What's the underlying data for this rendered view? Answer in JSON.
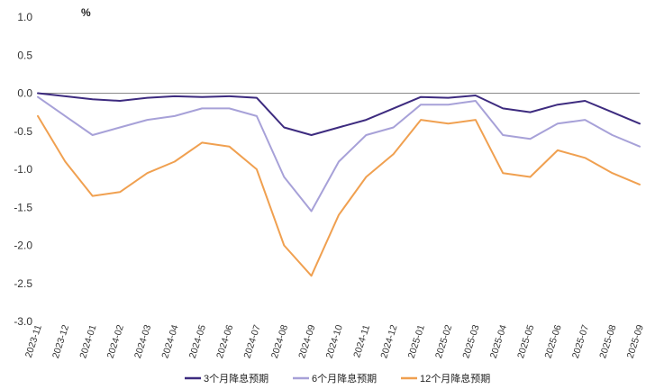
{
  "chart_data": {
    "type": "line",
    "unit_label": "%",
    "ylim": [
      -3.0,
      1.0
    ],
    "yticks": [
      "1.0",
      "0.5",
      "0.0",
      "-0.5",
      "-1.0",
      "-1.5",
      "-2.0",
      "-2.5",
      "-3.0"
    ],
    "ytick_values": [
      1.0,
      0.5,
      0.0,
      -0.5,
      -1.0,
      -1.5,
      -2.0,
      -2.5,
      -3.0
    ],
    "x": [
      "2023-11",
      "2023-12",
      "2024-01",
      "2024-02",
      "2024-03",
      "2024-04",
      "2024-05",
      "2024-06",
      "2024-07",
      "2024-08",
      "2024-09",
      "2024-10",
      "2024-11",
      "2024-12",
      "2025-01",
      "2025-02",
      "2025-03",
      "2025-04",
      "2025-05",
      "2025-06",
      "2025-07",
      "2025-08",
      "2025-09"
    ],
    "grid": false,
    "legend_position": "bottom",
    "series": [
      {
        "name": "3个月降息预期",
        "color": "#3d2b7f",
        "values": [
          0.0,
          -0.04,
          -0.08,
          -0.1,
          -0.06,
          -0.04,
          -0.05,
          -0.04,
          -0.06,
          -0.45,
          -0.55,
          -0.45,
          -0.35,
          -0.2,
          -0.05,
          -0.06,
          -0.03,
          -0.2,
          -0.25,
          -0.15,
          -0.1,
          -0.25,
          -0.4
        ]
      },
      {
        "name": "6个月降息预期",
        "color": "#a7a1d8",
        "values": [
          -0.05,
          -0.3,
          -0.55,
          -0.45,
          -0.35,
          -0.3,
          -0.2,
          -0.2,
          -0.3,
          -1.1,
          -1.55,
          -0.9,
          -0.55,
          -0.45,
          -0.15,
          -0.15,
          -0.1,
          -0.55,
          -0.6,
          -0.4,
          -0.35,
          -0.55,
          -0.7
        ]
      },
      {
        "name": "12个月降息预期",
        "color": "#f0a050",
        "values": [
          -0.3,
          -0.9,
          -1.35,
          -1.3,
          -1.05,
          -0.9,
          -0.65,
          -0.7,
          -1.0,
          -2.0,
          -2.4,
          -1.6,
          -1.1,
          -0.8,
          -0.35,
          -0.4,
          -0.35,
          -1.05,
          -1.1,
          -0.75,
          -0.85,
          -1.05,
          -1.2
        ]
      }
    ]
  }
}
